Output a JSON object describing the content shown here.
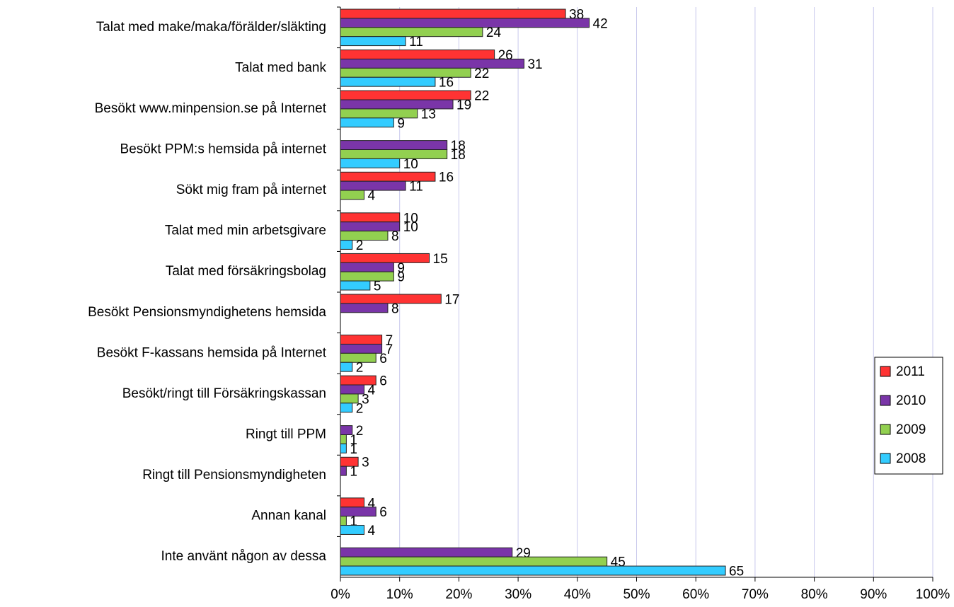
{
  "chart_data": {
    "type": "bar",
    "orientation": "horizontal",
    "categories": [
      "Talat med make/maka/förälder/släkting",
      "Talat med bank",
      "Besökt www.minpension.se på Internet",
      "Besökt PPM:s hemsida på internet",
      "Sökt mig fram på internet",
      "Talat med min arbetsgivare",
      "Talat med försäkringsbolag",
      "Besökt Pensionsmyndighetens hemsida",
      "Besökt F-kassans hemsida på Internet",
      "Besökt/ringt till Försäkringskassan",
      "Ringt till PPM",
      "Ringt till Pensionsmyndigheten",
      "Annan kanal",
      "Inte använt någon av dessa"
    ],
    "series": [
      {
        "name": "2011",
        "color": "#ff3333",
        "values": [
          38,
          26,
          22,
          null,
          16,
          10,
          15,
          17,
          7,
          6,
          null,
          3,
          4,
          null
        ]
      },
      {
        "name": "2010",
        "color": "#7a35a8",
        "values": [
          42,
          31,
          19,
          18,
          11,
          10,
          9,
          8,
          7,
          4,
          2,
          1,
          6,
          29
        ]
      },
      {
        "name": "2009",
        "color": "#92d050",
        "values": [
          24,
          22,
          13,
          18,
          4,
          8,
          9,
          null,
          6,
          3,
          1,
          null,
          1,
          45
        ]
      },
      {
        "name": "2008",
        "color": "#33ccff",
        "values": [
          11,
          16,
          9,
          10,
          null,
          2,
          5,
          null,
          2,
          2,
          1,
          null,
          4,
          65
        ]
      }
    ],
    "xlim": [
      0,
      100
    ],
    "xticks": [
      {
        "value": 0,
        "label": "0%"
      },
      {
        "value": 10,
        "label": "10%"
      },
      {
        "value": 20,
        "label": "20%"
      },
      {
        "value": 30,
        "label": "30%"
      },
      {
        "value": 40,
        "label": "40%"
      },
      {
        "value": 50,
        "label": "50%"
      },
      {
        "value": 60,
        "label": "60%"
      },
      {
        "value": 70,
        "label": "70%"
      },
      {
        "value": 80,
        "label": "80%"
      },
      {
        "value": 90,
        "label": "90%"
      },
      {
        "value": 100,
        "label": "100%"
      }
    ],
    "grid": true,
    "legend": "right"
  }
}
